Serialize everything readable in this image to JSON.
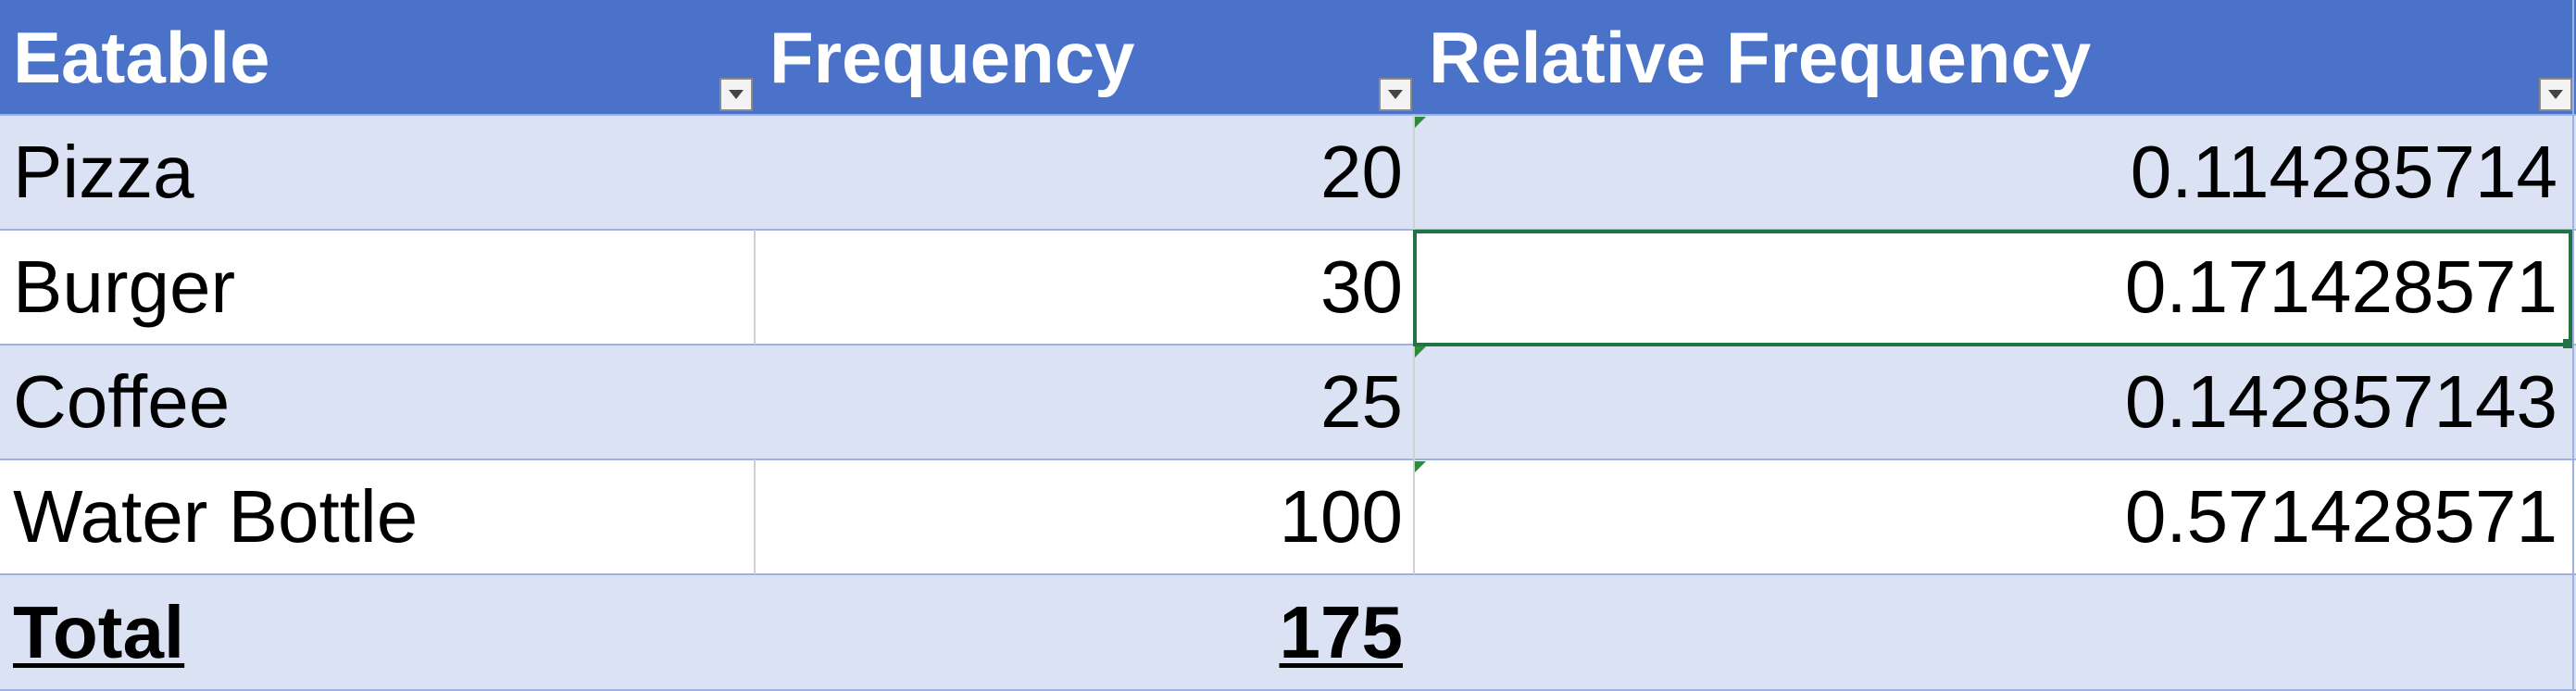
{
  "table": {
    "headers": [
      "Eatable",
      "Frequency",
      "Relative Frequency"
    ],
    "rows": [
      {
        "eatable": "Pizza",
        "frequency": "20",
        "relative": "0.114285714"
      },
      {
        "eatable": "Burger",
        "frequency": "30",
        "relative": "0.171428571"
      },
      {
        "eatable": "Coffee",
        "frequency": "25",
        "relative": "0.142857143"
      },
      {
        "eatable": "Water Bottle",
        "frequency": "100",
        "relative": "0.571428571"
      }
    ],
    "total": {
      "label": "Total",
      "frequency": "175"
    }
  },
  "colors": {
    "header_bg": "#4a72c8",
    "band_bg": "#dae2f3",
    "selection": "#217346"
  },
  "icons": {
    "dropdown": "filter-dropdown-icon",
    "error_indicator": "green-triangle-icon"
  }
}
